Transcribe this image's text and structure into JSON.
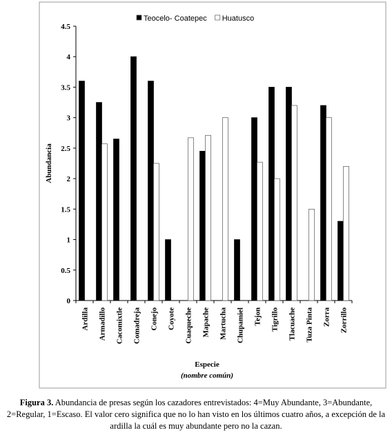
{
  "chart_data": {
    "type": "bar",
    "categories": [
      "Ardilla",
      "Armadillo",
      "Cacomixtle",
      "Comadreja",
      "Conejo",
      "Coyote",
      "Cuaqueche",
      "Mapache",
      "Martucha",
      "Chupamiel",
      "Tejon",
      "Tigrillo",
      "Tlacuache",
      "Tuza Pinta",
      "Zorra",
      "Zorrillo"
    ],
    "series": [
      {
        "name": "Teocelo- Coatepec",
        "color": "#000000",
        "values": [
          3.6,
          3.25,
          2.65,
          4,
          3.6,
          1,
          0,
          2.45,
          0,
          1,
          3,
          3.5,
          3.5,
          0,
          3.2,
          1.3
        ]
      },
      {
        "name": "Huatusco",
        "color": "#ffffff",
        "values": [
          0,
          2.57,
          0,
          0,
          2.25,
          0,
          2.67,
          2.71,
          3,
          0,
          2.27,
          2,
          3.2,
          1.5,
          3,
          2.2
        ]
      }
    ],
    "ylim": [
      0,
      4.5
    ],
    "yticks": [
      0,
      0.5,
      1,
      1.5,
      2,
      2.5,
      3,
      3.5,
      4,
      4.5
    ],
    "ylabel": "Abundancia",
    "xlabel": "Especie",
    "xlabel_sub": "(nombre común)",
    "legend": "top",
    "grid": false
  },
  "caption": {
    "label": "Figura 3.",
    "text": "Abundancia de presas según los cazadores entrevistados: 4=Muy Abundante, 3=Abundante, 2=Regular, 1=Escaso. El valor cero significa que no lo han visto en los últimos cuatro años, a excepción de la ardilla la cuál es muy abundante pero no la cazan."
  }
}
